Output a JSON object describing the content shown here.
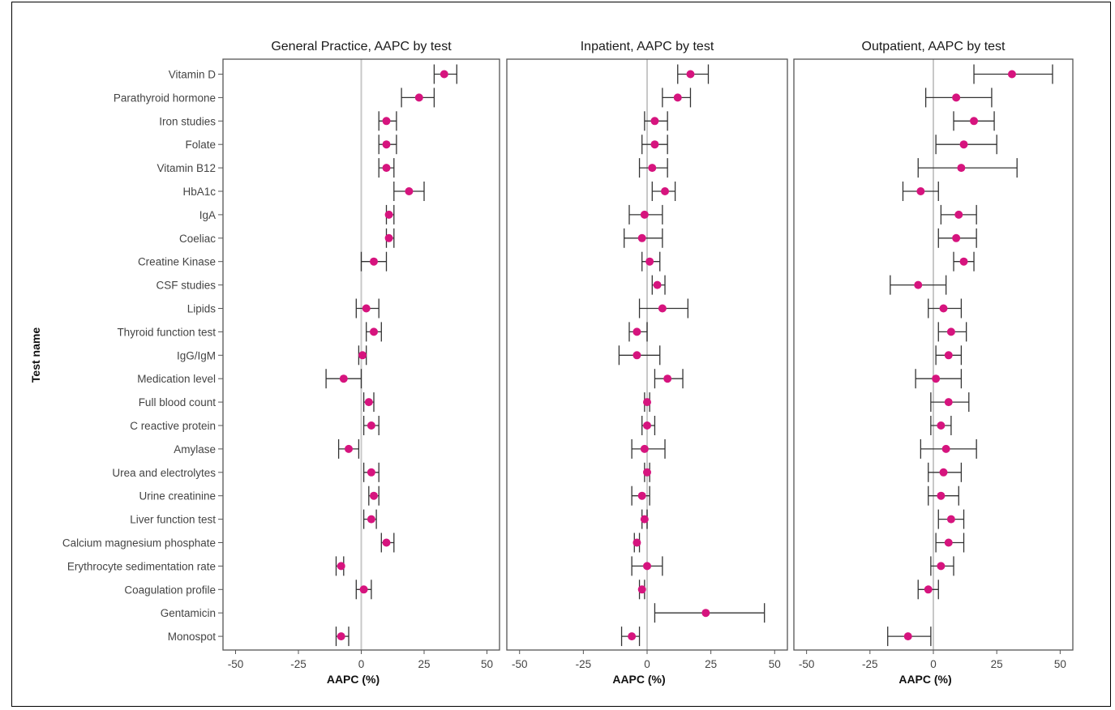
{
  "chart_data": {
    "type": "forest",
    "ylabel": "Test name",
    "xlim": [
      -55,
      55
    ],
    "xticks": [
      -50,
      -25,
      0,
      25,
      50
    ],
    "xtick_labels": [
      "-50",
      "-25",
      "0",
      "25",
      "50"
    ],
    "categories": [
      "Vitamin D",
      "Parathyroid hormone",
      "Iron studies",
      "Folate",
      "Vitamin B12",
      "HbA1c",
      "IgA",
      "Coeliac",
      "Creatine Kinase",
      "CSF studies",
      "Lipids",
      "Thyroid function test",
      "IgG/IgM",
      "Medication level",
      "Full blood count",
      "C reactive protein",
      "Amylase",
      "Urea and electrolytes",
      "Urine creatinine",
      "Liver function test",
      "Calcium magnesium phosphate",
      "Erythrocyte sedimentation rate",
      "Coagulation profile",
      "Gentamicin",
      "Monospot"
    ],
    "panels": [
      {
        "title": "General Practice, AAPC by test",
        "xlabel": "AAPC (%)",
        "points": [
          {
            "est": 33,
            "lo": 29,
            "hi": 38
          },
          {
            "est": 23,
            "lo": 16,
            "hi": 29
          },
          {
            "est": 10,
            "lo": 7,
            "hi": 14
          },
          {
            "est": 10,
            "lo": 7,
            "hi": 14
          },
          {
            "est": 10,
            "lo": 7,
            "hi": 13
          },
          {
            "est": 19,
            "lo": 13,
            "hi": 25
          },
          {
            "est": 11,
            "lo": 10,
            "hi": 13
          },
          {
            "est": 11,
            "lo": 10,
            "hi": 13
          },
          {
            "est": 5,
            "lo": 0,
            "hi": 10
          },
          {
            "est": null,
            "lo": null,
            "hi": null
          },
          {
            "est": 2,
            "lo": -2,
            "hi": 7
          },
          {
            "est": 5,
            "lo": 2,
            "hi": 8
          },
          {
            "est": 0.5,
            "lo": -1,
            "hi": 2
          },
          {
            "est": -7,
            "lo": -14,
            "hi": 0
          },
          {
            "est": 3,
            "lo": 1,
            "hi": 5
          },
          {
            "est": 4,
            "lo": 1,
            "hi": 7
          },
          {
            "est": -5,
            "lo": -9,
            "hi": -1
          },
          {
            "est": 4,
            "lo": 1,
            "hi": 7
          },
          {
            "est": 5,
            "lo": 3,
            "hi": 7
          },
          {
            "est": 4,
            "lo": 1,
            "hi": 6
          },
          {
            "est": 10,
            "lo": 8,
            "hi": 13
          },
          {
            "est": -8,
            "lo": -10,
            "hi": -7
          },
          {
            "est": 1,
            "lo": -2,
            "hi": 4
          },
          {
            "est": null,
            "lo": null,
            "hi": null
          },
          {
            "est": -8,
            "lo": -10,
            "hi": -5
          }
        ]
      },
      {
        "title": "Inpatient, AAPC by test",
        "xlabel": "AAPC (%)",
        "points": [
          {
            "est": 17,
            "lo": 12,
            "hi": 24
          },
          {
            "est": 12,
            "lo": 6,
            "hi": 17
          },
          {
            "est": 3,
            "lo": -1,
            "hi": 8
          },
          {
            "est": 3,
            "lo": -2,
            "hi": 8
          },
          {
            "est": 2,
            "lo": -3,
            "hi": 8
          },
          {
            "est": 7,
            "lo": 2,
            "hi": 11
          },
          {
            "est": -1,
            "lo": -7,
            "hi": 6
          },
          {
            "est": -2,
            "lo": -9,
            "hi": 6
          },
          {
            "est": 1,
            "lo": -2,
            "hi": 5
          },
          {
            "est": 4,
            "lo": 2,
            "hi": 7
          },
          {
            "est": 6,
            "lo": -3,
            "hi": 16
          },
          {
            "est": -4,
            "lo": -7,
            "hi": 0
          },
          {
            "est": -4,
            "lo": -11,
            "hi": 5
          },
          {
            "est": 8,
            "lo": 3,
            "hi": 14
          },
          {
            "est": 0,
            "lo": -1,
            "hi": 1
          },
          {
            "est": 0,
            "lo": -2,
            "hi": 3
          },
          {
            "est": -1,
            "lo": -6,
            "hi": 7
          },
          {
            "est": 0,
            "lo": -1,
            "hi": 1
          },
          {
            "est": -2,
            "lo": -6,
            "hi": 1
          },
          {
            "est": -1,
            "lo": -2,
            "hi": 0
          },
          {
            "est": -4,
            "lo": -5,
            "hi": -3
          },
          {
            "est": 0,
            "lo": -6,
            "hi": 6
          },
          {
            "est": -2,
            "lo": -3,
            "hi": -1
          },
          {
            "est": 23,
            "lo": 3,
            "hi": 46
          },
          {
            "est": -6,
            "lo": -10,
            "hi": -3
          }
        ]
      },
      {
        "title": "Outpatient, AAPC by test",
        "xlabel": "AAPC (%)",
        "points": [
          {
            "est": 31,
            "lo": 16,
            "hi": 47
          },
          {
            "est": 9,
            "lo": -3,
            "hi": 23
          },
          {
            "est": 16,
            "lo": 8,
            "hi": 24
          },
          {
            "est": 12,
            "lo": 1,
            "hi": 25
          },
          {
            "est": 11,
            "lo": -6,
            "hi": 33
          },
          {
            "est": -5,
            "lo": -12,
            "hi": 2
          },
          {
            "est": 10,
            "lo": 3,
            "hi": 17
          },
          {
            "est": 9,
            "lo": 2,
            "hi": 17
          },
          {
            "est": 12,
            "lo": 8,
            "hi": 16
          },
          {
            "est": -6,
            "lo": -17,
            "hi": 5
          },
          {
            "est": 4,
            "lo": -2,
            "hi": 11
          },
          {
            "est": 7,
            "lo": 2,
            "hi": 13
          },
          {
            "est": 6,
            "lo": 1,
            "hi": 11
          },
          {
            "est": 1,
            "lo": -7,
            "hi": 11
          },
          {
            "est": 6,
            "lo": -1,
            "hi": 14
          },
          {
            "est": 3,
            "lo": -1,
            "hi": 7
          },
          {
            "est": 5,
            "lo": -5,
            "hi": 17
          },
          {
            "est": 4,
            "lo": -2,
            "hi": 11
          },
          {
            "est": 3,
            "lo": -2,
            "hi": 10
          },
          {
            "est": 7,
            "lo": 2,
            "hi": 12
          },
          {
            "est": 6,
            "lo": 1,
            "hi": 12
          },
          {
            "est": 3,
            "lo": -1,
            "hi": 8
          },
          {
            "est": -2,
            "lo": -6,
            "hi": 2
          },
          {
            "est": null,
            "lo": null,
            "hi": null
          },
          {
            "est": -10,
            "lo": -18,
            "hi": -1
          }
        ]
      }
    ],
    "colors": {
      "point": "#d6147e",
      "errorbar": "#333333",
      "zero_line": "#c8c8c8",
      "panel_border": "#555555"
    }
  }
}
